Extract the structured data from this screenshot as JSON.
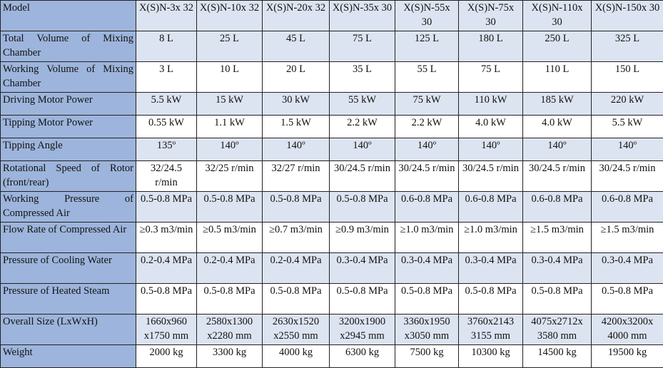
{
  "header": {
    "label": "Model",
    "models": [
      "X(S)N-3x 32",
      "X(S)N-10x 32",
      "X(S)N-20x 32",
      "X(S)N-35x 30",
      "X(S)N-55x 30",
      "X(S)N-75x 30",
      "X(S)N-110x 30",
      "X(S)N-150x 30"
    ]
  },
  "rows": [
    {
      "label": "Total Volume of Mixing Chamber",
      "values": [
        "8 L",
        "25 L",
        "45 L",
        "75 L",
        "125 L",
        "180 L",
        "250 L",
        "325 L"
      ]
    },
    {
      "label": "Working Volume of Mixing Chamber",
      "values": [
        "3 L",
        "10 L",
        "20 L",
        "35 L",
        "55 L",
        "75 L",
        "110 L",
        "150 L"
      ]
    },
    {
      "label": "Driving Motor Power",
      "values": [
        "5.5 kW",
        "15 kW",
        "30 kW",
        "55 kW",
        "75 kW",
        "110 kW",
        "185 kW",
        "220 kW"
      ]
    },
    {
      "label": "Tipping Motor Power",
      "values": [
        "0.55 kW",
        "1.1 kW",
        "1.5 kW",
        "2.2 kW",
        "2.2 kW",
        "4.0 kW",
        "4.0 kW",
        "5.5 kW"
      ]
    },
    {
      "label": "Tipping Angle",
      "values": [
        "135º",
        "140º",
        "140º",
        "140º",
        "140º",
        "140º",
        "140º",
        "140º"
      ]
    },
    {
      "label": "Rotational Speed of Rotor (front/rear)",
      "values": [
        "32/24.5 r/min",
        "32/25 r/min",
        "32/27 r/min",
        "30/24.5 r/min",
        "30/24.5 r/min",
        "30/24.5 r/min",
        "30/24.5 r/min",
        "30/24.5 r/min"
      ]
    },
    {
      "label": "Working Pressure of Compressed Air",
      "values": [
        "0.5-0.8 MPa",
        "0.5-0.8 MPa",
        "0.5-0.8 MPa",
        "0.5-0.8 MPa",
        "0.6-0.8 MPa",
        "0.6-0.8 MPa",
        "0.6-0.8 MPa",
        "0.6-0.8 MPa"
      ]
    },
    {
      "label": "Flow Rate of Compressed Air",
      "values": [
        "≥0.3 m3/min",
        "≥0.5 m3/min",
        "≥0.7 m3/min",
        "≥0.9 m3/min",
        "≥1.0 m3/min",
        "≥1.0 m3/min",
        "≥1.5 m3/min",
        "≥1.5 m3/min"
      ]
    },
    {
      "label": "Pressure of Cooling Water",
      "values": [
        "0.2-0.4 MPa",
        "0.2-0.4 MPa",
        "0.2-0.4 MPa",
        "0.3-0.4 MPa",
        "0.3-0.4 MPa",
        "0.3-0.4 MPa",
        "0.3-0.4 MPa",
        "0.3-0.4 MPa"
      ]
    },
    {
      "label": "Pressure of Heated Steam",
      "values": [
        "0.5-0.8 MPa",
        "0.5-0.8 MPa",
        "0.5-0.8 MPa",
        "0.5-0.8 MPa",
        "0.5-0.8 MPa",
        "0.5-0.8 MPa",
        "0.5-0.8 MPa",
        "0.5-0.8 MPa"
      ]
    },
    {
      "label": "Overall Size (LxWxH)",
      "values": [
        "1660x960 x1750 mm",
        "2580x1300 x2280 mm",
        "2630x1520 x2550 mm",
        "3200x1900 x2945 mm",
        "3360x1950 x3050 mm",
        "3760x2143 3155 mm",
        "4075x2712x 3580 mm",
        "4200x3200x 4000 mm"
      ]
    },
    {
      "label": "Weight",
      "values": [
        "2000 kg",
        "3300 kg",
        "4000 kg",
        "6300 kg",
        "7500 kg",
        "10300 kg",
        "14500 kg",
        "19500 kg"
      ]
    }
  ],
  "colors": {
    "label_column": "#9db5dc",
    "row_tint": "#dde4f1",
    "row_white": "#ffffff",
    "border": "#222222"
  }
}
